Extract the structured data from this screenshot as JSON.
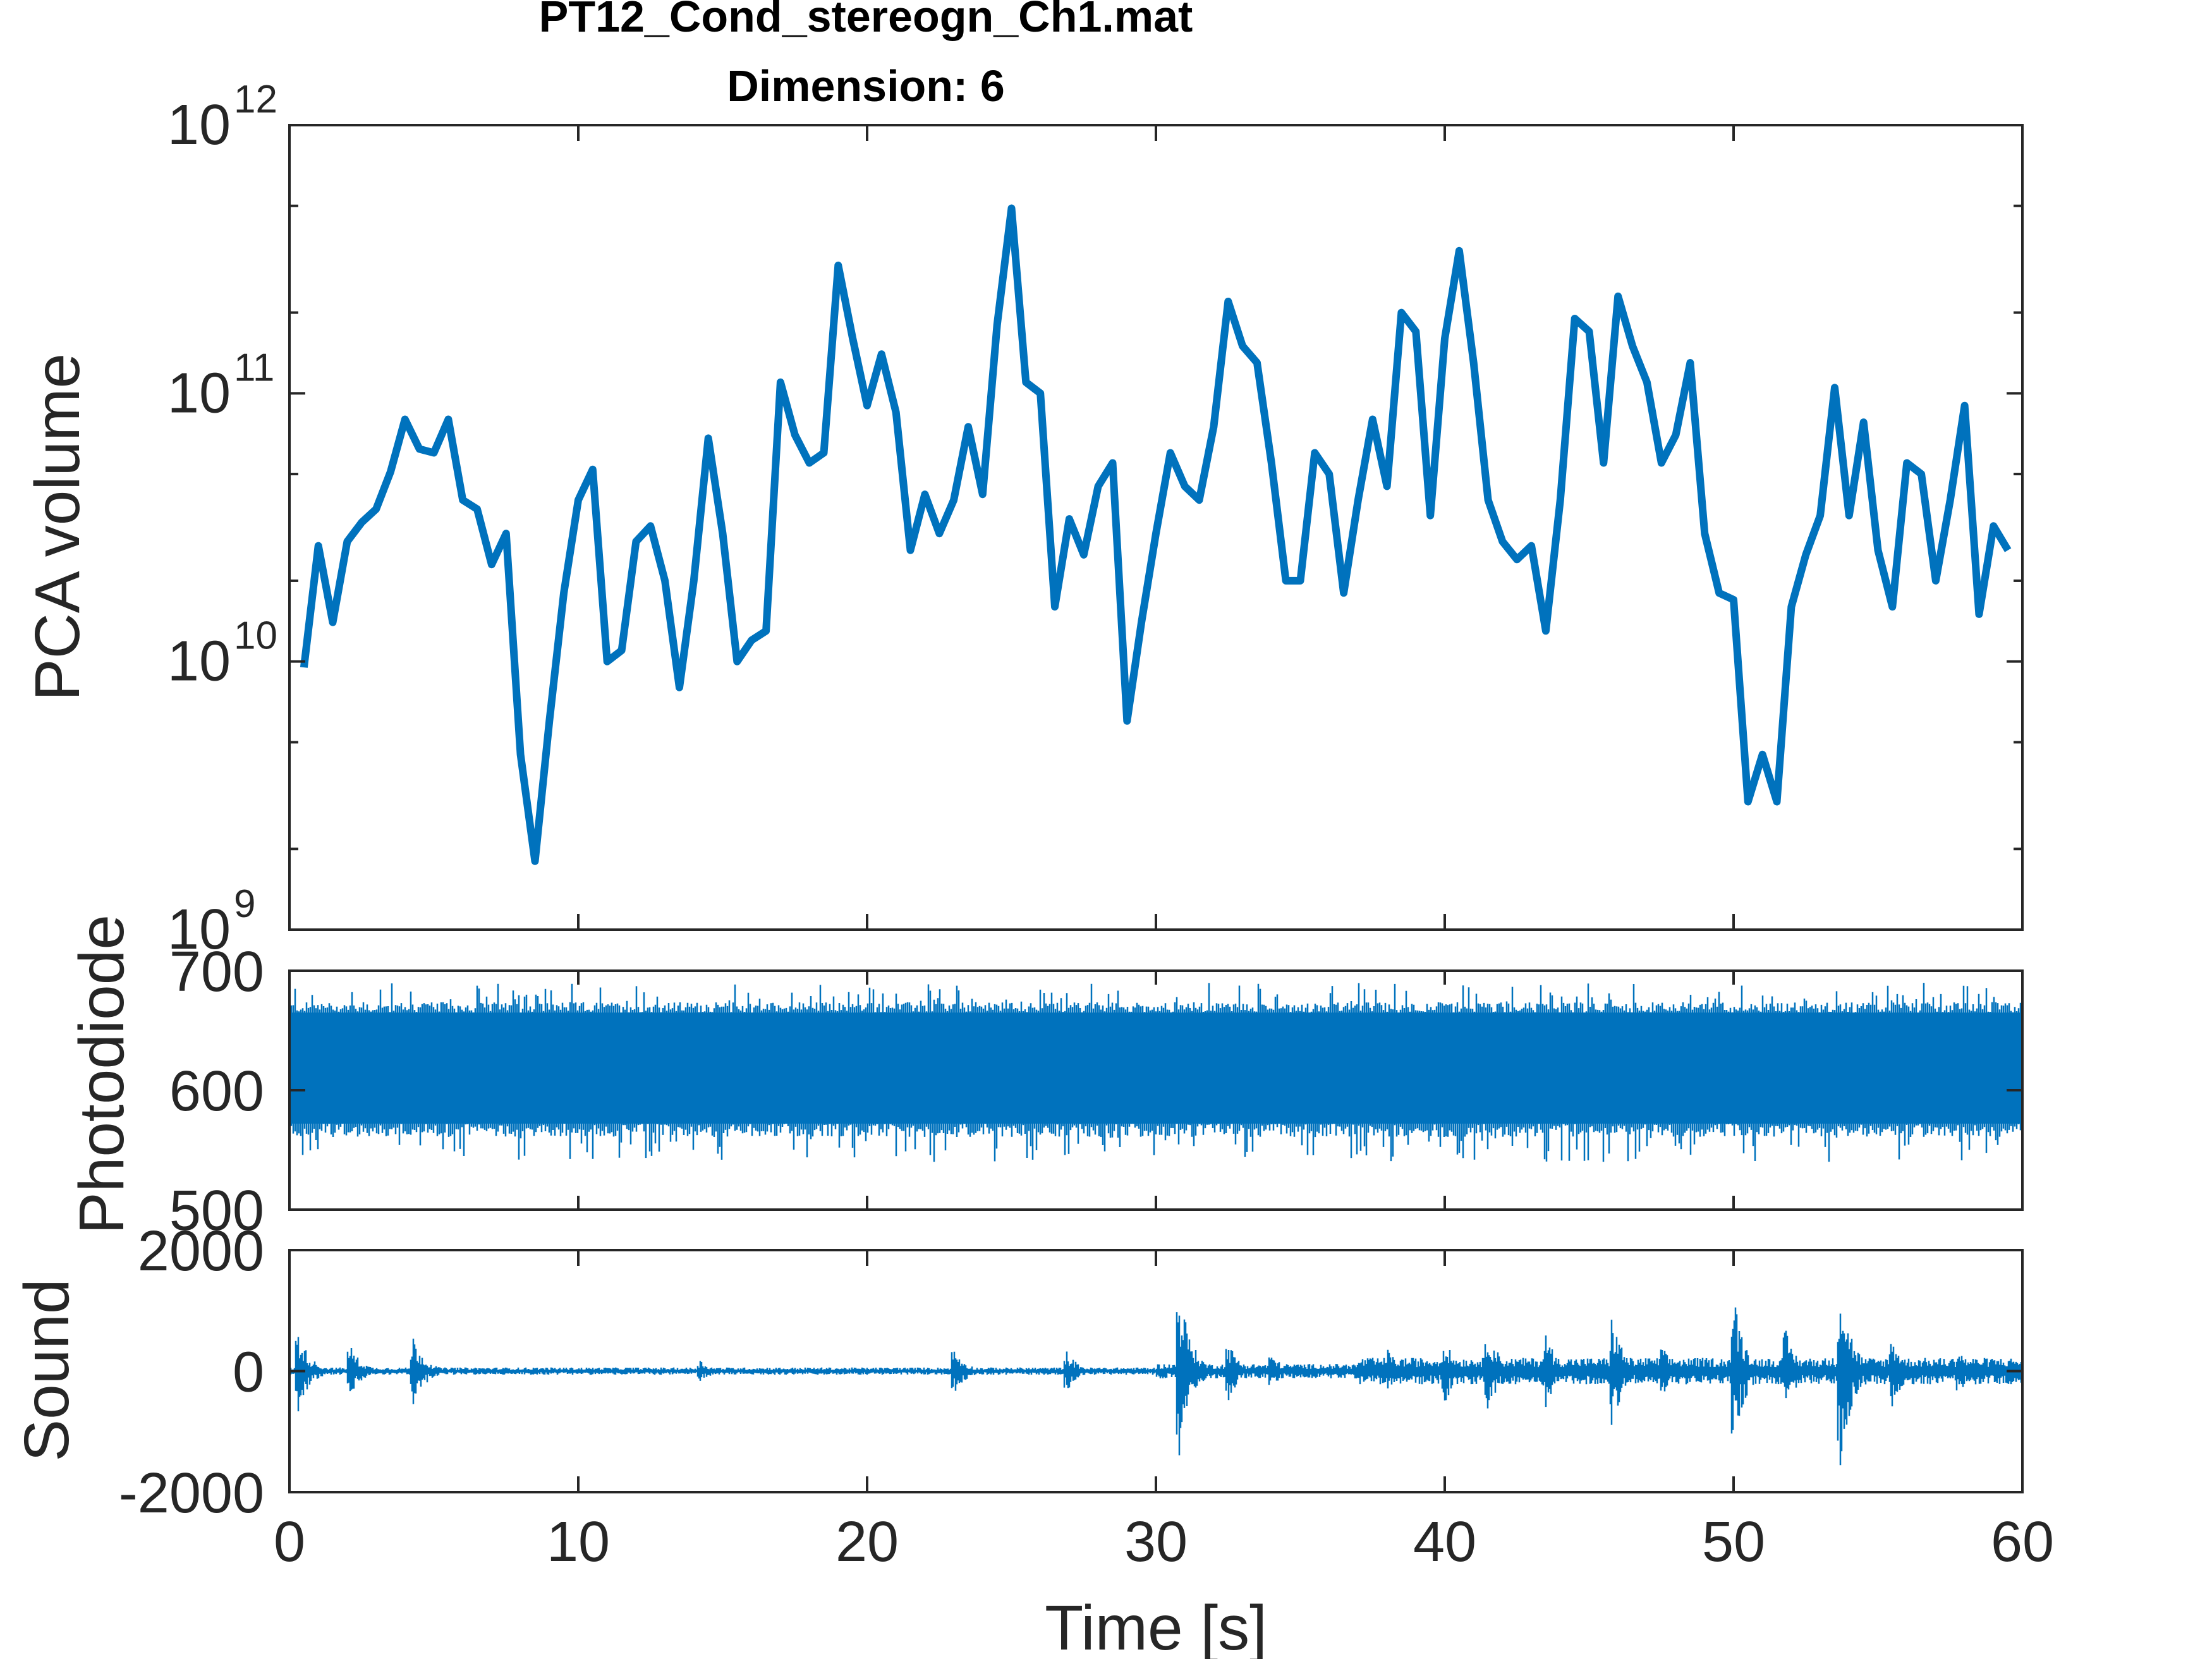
{
  "figure": {
    "title_line1": "PT12_Cond_stereogn_Ch1.mat",
    "title_line2": "Dimension: 6",
    "xlabel": "Time [s]",
    "line_color": "#0072BD",
    "axis_color": "#262626"
  },
  "chart_data": [
    {
      "name": "pca",
      "type": "line",
      "ylabel": "PCA volume",
      "yscale": "log",
      "xlim": [
        0,
        60
      ],
      "ylim": [
        1000000000,
        1000000000000
      ],
      "yticks": [
        {
          "base": "10",
          "exp": "9",
          "value": 1000000000
        },
        {
          "base": "10",
          "exp": "10",
          "value": 10000000000
        },
        {
          "base": "10",
          "exp": "11",
          "value": 100000000000
        },
        {
          "base": "10",
          "exp": "12",
          "value": 1000000000000
        }
      ],
      "x": [
        0.5,
        1.0,
        1.5,
        2.0,
        2.5,
        3.0,
        3.5,
        4.0,
        4.5,
        5.0,
        5.5,
        6.0,
        6.5,
        7.0,
        7.5,
        8.0,
        8.5,
        9.0,
        9.5,
        10.0,
        10.5,
        11.0,
        11.5,
        12.0,
        12.5,
        13.0,
        13.5,
        14.0,
        14.5,
        15.0,
        15.5,
        16.0,
        16.5,
        17.0,
        17.5,
        18.0,
        18.5,
        19.0,
        19.5,
        20.0,
        20.5,
        21.0,
        21.5,
        22.0,
        22.5,
        23.0,
        23.5,
        24.0,
        24.5,
        25.0,
        25.5,
        26.0,
        26.5,
        27.0,
        27.5,
        28.0,
        28.5,
        29.0,
        29.5,
        30.0,
        30.5,
        31.0,
        31.5,
        32.0,
        32.5,
        33.0,
        33.5,
        34.0,
        34.5,
        35.0,
        35.5,
        36.0,
        36.5,
        37.0,
        37.5,
        38.0,
        38.5,
        39.0,
        39.5,
        40.0,
        40.5,
        41.0,
        41.5,
        42.0,
        42.5,
        43.0,
        43.5,
        44.0,
        44.5,
        45.0,
        45.5,
        46.0,
        46.5,
        47.0,
        47.5,
        48.0,
        48.5,
        49.0,
        49.5,
        50.0,
        50.5,
        51.0,
        51.5,
        52.0,
        52.5,
        53.0,
        53.5,
        54.0,
        54.5,
        55.0,
        55.5,
        56.0,
        56.5,
        57.0,
        57.5,
        58.0,
        58.5,
        59.0,
        59.5
      ],
      "y": [
        9500000000,
        27000000000,
        14000000000,
        28000000000,
        33000000000,
        37000000000,
        51000000000,
        80000000000,
        62000000000,
        60000000000,
        80000000000,
        40000000000,
        37000000000,
        23000000000,
        30000000000,
        4500000000,
        1800000000,
        6000000000,
        18000000000,
        40000000000,
        52000000000,
        10000000000,
        11000000000,
        28000000000,
        32000000000,
        20000000000,
        8000000000,
        20000000000,
        68000000000,
        30000000000,
        10000000000,
        12000000000,
        13000000000,
        110000000000,
        70000000000,
        55000000000,
        60000000000,
        300000000000,
        160000000000,
        90000000000,
        140000000000,
        85000000000,
        26000000000,
        42000000000,
        30000000000,
        40000000000,
        75000000000,
        42000000000,
        180000000000,
        490000000000,
        110000000000,
        100000000000,
        16000000000,
        34000000000,
        25000000000,
        45000000000,
        55000000000,
        6000000000,
        14000000000,
        30000000000,
        60000000000,
        45000000000,
        40000000000,
        75000000000,
        220000000000,
        150000000000,
        130000000000,
        55000000000,
        20000000000,
        20000000000,
        60000000000,
        50000000000,
        18000000000,
        40000000000,
        80000000000,
        45000000000,
        200000000000,
        170000000000,
        35000000000,
        160000000000,
        340000000000,
        130000000000,
        40000000000,
        28000000000,
        24000000000,
        27000000000,
        13000000000,
        40000000000,
        190000000000,
        170000000000,
        55000000000,
        230000000000,
        150000000000,
        110000000000,
        55000000000,
        70000000000,
        130000000000,
        30000000000,
        18000000000,
        17000000000,
        3000000000,
        4500000000,
        3000000000,
        16000000000,
        25000000000,
        35000000000,
        105000000000,
        35000000000,
        78000000000,
        26000000000,
        16000000000,
        55000000000,
        50000000000,
        20000000000,
        40000000000,
        90000000000,
        15000000000,
        32000000000,
        26000000000
      ]
    },
    {
      "name": "photodiode",
      "type": "line",
      "ylabel": "Photodiode",
      "xlim": [
        0,
        60
      ],
      "ylim": [
        500,
        700
      ],
      "yticks": [
        {
          "label": "500",
          "value": 500
        },
        {
          "label": "600",
          "value": 600
        },
        {
          "label": "700",
          "value": 700
        }
      ],
      "center": 612,
      "band_low": 572,
      "band_high": 665,
      "peak_low": 540,
      "peak_high": 690
    },
    {
      "name": "sound",
      "type": "line",
      "ylabel": "Sound",
      "xlim": [
        0,
        60
      ],
      "ylim": [
        -2000,
        2000
      ],
      "yticks": [
        {
          "label": "-2000",
          "value": -2000
        },
        {
          "label": "0",
          "value": 0
        },
        {
          "label": "2000",
          "value": 2000
        }
      ],
      "xticks": [
        {
          "label": "0",
          "value": 0
        },
        {
          "label": "10",
          "value": 10
        },
        {
          "label": "20",
          "value": 20
        },
        {
          "label": "30",
          "value": 30
        },
        {
          "label": "40",
          "value": 40
        },
        {
          "label": "50",
          "value": 50
        },
        {
          "label": "60",
          "value": 60
        }
      ],
      "baseline_amp": 50,
      "bursts": [
        {
          "t": 0.3,
          "amp": 700
        },
        {
          "t": 2.1,
          "amp": 450
        },
        {
          "t": 4.3,
          "amp": 600
        },
        {
          "t": 14.2,
          "amp": 200
        },
        {
          "t": 23.0,
          "amp": 400
        },
        {
          "t": 26.9,
          "amp": 350
        },
        {
          "t": 30.8,
          "amp": 1500
        },
        {
          "t": 32.5,
          "amp": 500
        },
        {
          "t": 34.0,
          "amp": 300
        },
        {
          "t": 38.0,
          "amp": 400
        },
        {
          "t": 40.0,
          "amp": 550
        },
        {
          "t": 41.5,
          "amp": 750
        },
        {
          "t": 43.5,
          "amp": 650
        },
        {
          "t": 45.8,
          "amp": 950
        },
        {
          "t": 47.5,
          "amp": 450
        },
        {
          "t": 50.0,
          "amp": 1300
        },
        {
          "t": 51.8,
          "amp": 700
        },
        {
          "t": 53.7,
          "amp": 1600
        },
        {
          "t": 55.5,
          "amp": 600
        },
        {
          "t": 57.8,
          "amp": 400
        }
      ],
      "region_amp": [
        {
          "from": 0,
          "to": 30,
          "amp": 60
        },
        {
          "from": 30,
          "to": 37,
          "amp": 120
        },
        {
          "from": 37,
          "to": 60,
          "amp": 220
        }
      ]
    }
  ]
}
